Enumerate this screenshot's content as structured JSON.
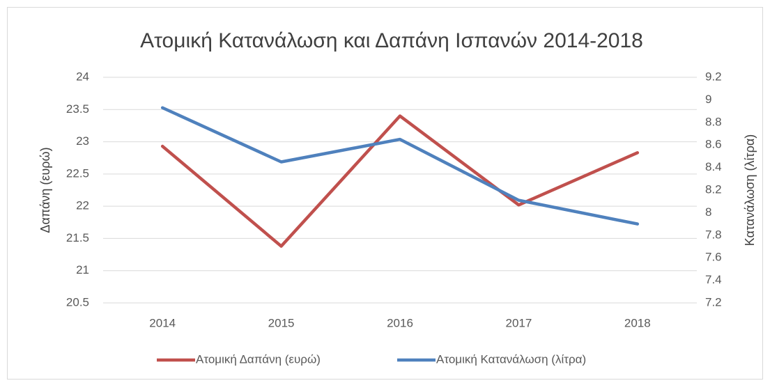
{
  "chart_data": {
    "type": "line",
    "title": "Ατομική Κατανάλωση και Δαπάνη Ισπανών 2014-2018",
    "y_label": "Δαπάνη (ευρώ)",
    "y2_label": "Κατανάλωση (λίτρα)",
    "categories": [
      "2014",
      "2015",
      "2016",
      "2017",
      "2018"
    ],
    "series": [
      {
        "name": "Ατομική Δαπάνη (ευρώ)",
        "color": "#c0504d",
        "values": [
          22.93,
          21.38,
          23.4,
          22.02,
          22.83
        ]
      },
      {
        "name": "Ατομική Κατανάλωση (λίτρα)",
        "color": "#4f81bd",
        "values": [
          8.93,
          8.45,
          8.65,
          8.11,
          7.9
        ],
        "axis": "y2"
      }
    ],
    "ylim": [
      20.5,
      24
    ],
    "yticks": [
      20.5,
      21,
      21.5,
      22,
      22.5,
      23,
      23.5,
      24
    ],
    "y2lim": [
      7.2,
      9.2
    ],
    "y2ticks": [
      7.2,
      7.4,
      7.6,
      7.8,
      8,
      8.2,
      8.4,
      8.6,
      8.8,
      9,
      9.2
    ],
    "grid": true,
    "legend": "bottom"
  }
}
